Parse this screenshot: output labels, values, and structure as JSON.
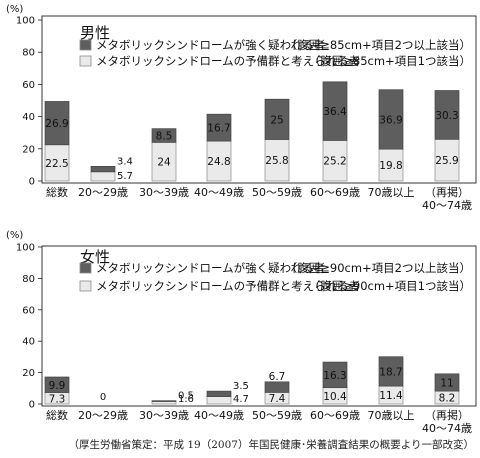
{
  "y_unit": "(%)",
  "source_note": "（厚生労働省策定：平成 19（2007）年国民健康･栄養調査結果の概要より一部改変）",
  "colors": {
    "strong": "#5e5e5e",
    "reserve": "#eaeaea",
    "border": "#8a8a8a"
  },
  "chart_data": [
    {
      "type": "bar",
      "stacked": true,
      "title": "男性",
      "ylim": [
        0,
        100
      ],
      "yticks": [
        0,
        20,
        40,
        60,
        80,
        100
      ],
      "grid": false,
      "legend_position": "top-right",
      "categories": [
        "総数",
        "20〜29歳",
        "30〜39歳",
        "40〜49歳",
        "50〜59歳",
        "60〜69歳",
        "70歳以上",
        "（再掲）\n40〜74歳"
      ],
      "series": [
        {
          "name": "メタボリックシンドロームの予備群と考えられる者",
          "criteria": "（腹囲≧85cm+項目1つ該当）",
          "color": "#eaeaea",
          "values": [
            22.5,
            5.7,
            24,
            24.8,
            25.8,
            25.2,
            19.8,
            25.9
          ]
        },
        {
          "name": "メタボリックシンドロームが強く疑われる者",
          "criteria": "（腹囲≧85cm+項目2つ以上該当）",
          "color": "#5e5e5e",
          "values": [
            26.9,
            3.4,
            8.5,
            16.7,
            25,
            36.4,
            36.9,
            30.3
          ]
        }
      ]
    },
    {
      "type": "bar",
      "stacked": true,
      "title": "女性",
      "ylim": [
        0,
        100
      ],
      "yticks": [
        0,
        20,
        40,
        60,
        80,
        100
      ],
      "grid": false,
      "legend_position": "top-right",
      "categories": [
        "総数",
        "20〜29歳",
        "30〜39歳",
        "40〜49歳",
        "50〜59歳",
        "60〜69歳",
        "70歳以上",
        "（再掲）\n40〜74歳"
      ],
      "series": [
        {
          "name": "メタボリックシンドロームの予備群と考えられる者",
          "criteria": "（腹囲≧90cm+項目1つ該当）",
          "color": "#eaeaea",
          "values": [
            7.3,
            0,
            1.6,
            4.7,
            7.4,
            10.4,
            11.4,
            8.2
          ]
        },
        {
          "name": "メタボリックシンドロームが強く疑われる者",
          "criteria": "（腹囲≧90cm+項目2つ以上該当）",
          "color": "#5e5e5e",
          "values": [
            9.9,
            0,
            0.5,
            3.5,
            6.7,
            16.3,
            18.7,
            11
          ]
        }
      ]
    }
  ]
}
